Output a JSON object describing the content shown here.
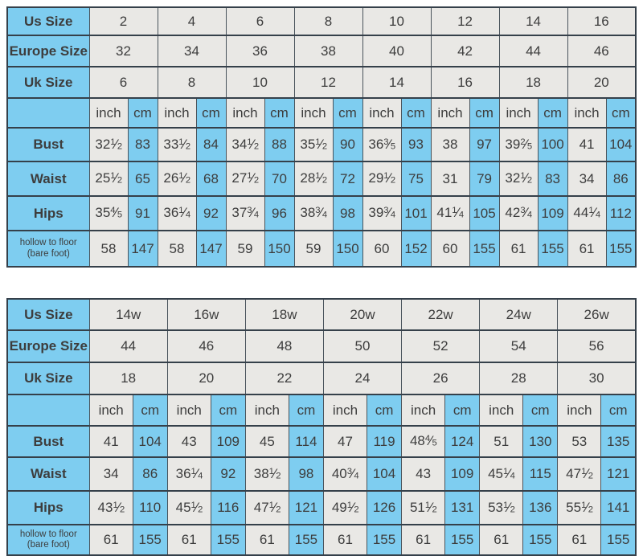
{
  "colors": {
    "header_blue": "#7ecdf0",
    "cell_gray": "#e9e8e5",
    "border": "#35404a"
  },
  "unit_labels": {
    "inch": "inch",
    "cm": "cm"
  },
  "tables": [
    {
      "name": "regular-sizes",
      "size_rows": [
        {
          "label": "Us Size",
          "values": [
            "2",
            "4",
            "6",
            "8",
            "10",
            "12",
            "14",
            "16"
          ]
        },
        {
          "label": "Europe Size",
          "values": [
            "32",
            "34",
            "36",
            "38",
            "40",
            "42",
            "44",
            "46"
          ]
        },
        {
          "label": "Uk Size",
          "values": [
            "6",
            "8",
            "10",
            "12",
            "14",
            "16",
            "18",
            "20"
          ]
        }
      ],
      "measure_rows": [
        {
          "label": "Bust",
          "pairs": [
            [
              "32 1/2",
              "83"
            ],
            [
              "33 1/2",
              "84"
            ],
            [
              "34 1/2",
              "88"
            ],
            [
              "35 1/2",
              "90"
            ],
            [
              "36 3/5",
              "93"
            ],
            [
              "38",
              "97"
            ],
            [
              "39 2/5",
              "100"
            ],
            [
              "41",
              "104"
            ]
          ]
        },
        {
          "label": "Waist",
          "pairs": [
            [
              "25 1/2",
              "65"
            ],
            [
              "26 1/2",
              "68"
            ],
            [
              "27 1/2",
              "70"
            ],
            [
              "28 1/2",
              "72"
            ],
            [
              "29 1/2",
              "75"
            ],
            [
              "31",
              "79"
            ],
            [
              "32 1/2",
              "83"
            ],
            [
              "34",
              "86"
            ]
          ]
        },
        {
          "label": "Hips",
          "pairs": [
            [
              "35 4/5",
              "91"
            ],
            [
              "36 1/4",
              "92"
            ],
            [
              "37 3/4",
              "96"
            ],
            [
              "38 3/4",
              "98"
            ],
            [
              "39 3/4",
              "101"
            ],
            [
              "41 1/4",
              "105"
            ],
            [
              "42 3/4",
              "109"
            ],
            [
              "44 1/4",
              "112"
            ]
          ]
        },
        {
          "label": "hollow to floor",
          "sublabel": "(bare foot)",
          "pairs": [
            [
              "58",
              "147"
            ],
            [
              "58",
              "147"
            ],
            [
              "59",
              "150"
            ],
            [
              "59",
              "150"
            ],
            [
              "60",
              "152"
            ],
            [
              "60",
              "155"
            ],
            [
              "61",
              "155"
            ],
            [
              "61",
              "155"
            ]
          ]
        }
      ]
    },
    {
      "name": "plus-sizes",
      "size_rows": [
        {
          "label": "Us Size",
          "values": [
            "14w",
            "16w",
            "18w",
            "20w",
            "22w",
            "24w",
            "26w"
          ]
        },
        {
          "label": "Europe Size",
          "values": [
            "44",
            "46",
            "48",
            "50",
            "52",
            "54",
            "56"
          ]
        },
        {
          "label": "Uk Size",
          "values": [
            "18",
            "20",
            "22",
            "24",
            "26",
            "28",
            "30"
          ]
        }
      ],
      "measure_rows": [
        {
          "label": "Bust",
          "pairs": [
            [
              "41",
              "104"
            ],
            [
              "43",
              "109"
            ],
            [
              "45",
              "114"
            ],
            [
              "47",
              "119"
            ],
            [
              "48 4/5",
              "124"
            ],
            [
              "51",
              "130"
            ],
            [
              "53",
              "135"
            ]
          ]
        },
        {
          "label": "Waist",
          "pairs": [
            [
              "34",
              "86"
            ],
            [
              "36 1/4",
              "92"
            ],
            [
              "38 1/2",
              "98"
            ],
            [
              "40 3/4",
              "104"
            ],
            [
              "43",
              "109"
            ],
            [
              "45 1/4",
              "115"
            ],
            [
              "47 1/2",
              "121"
            ]
          ]
        },
        {
          "label": "Hips",
          "pairs": [
            [
              "43 1/2",
              "110"
            ],
            [
              "45 1/2",
              "116"
            ],
            [
              "47 1/2",
              "121"
            ],
            [
              "49 1/2",
              "126"
            ],
            [
              "51 1/2",
              "131"
            ],
            [
              "53 1/2",
              "136"
            ],
            [
              "55 1/2",
              "141"
            ]
          ]
        },
        {
          "label": "hollow to floor",
          "sublabel": "(bare foot)",
          "pairs": [
            [
              "61",
              "155"
            ],
            [
              "61",
              "155"
            ],
            [
              "61",
              "155"
            ],
            [
              "61",
              "155"
            ],
            [
              "61",
              "155"
            ],
            [
              "61",
              "155"
            ],
            [
              "61",
              "155"
            ]
          ]
        }
      ]
    }
  ]
}
